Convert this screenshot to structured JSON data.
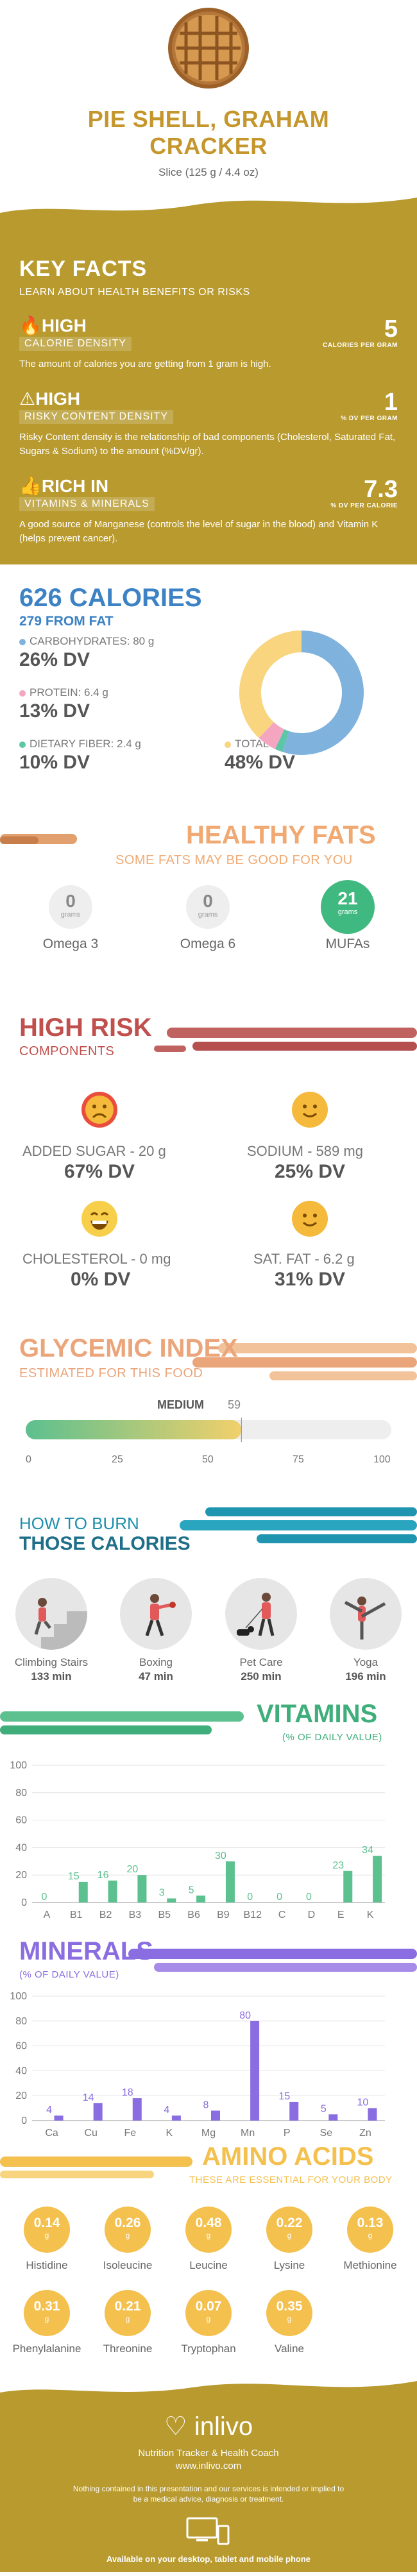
{
  "header": {
    "title_line1": "PIE SHELL, GRAHAM",
    "title_line2": "CRACKER",
    "serving": "Slice (125 g / 4.4 oz)"
  },
  "key_facts": {
    "title": "KEY FACTS",
    "subtitle": "LEARN ABOUT HEALTH BENEFITS OR RISKS",
    "facts": [
      {
        "level": "HIGH",
        "band": "CALORIE DENSITY",
        "value": "5",
        "unit": "CALORIES PER GRAM",
        "desc": "The amount of calories you are getting from 1 gram is high."
      },
      {
        "level": "HIGH",
        "band": "RISKY CONTENT DENSITY",
        "value": "1",
        "unit": "% DV PER GRAM",
        "desc": "Risky Content density is the relationship of bad components (Cholesterol, Saturated Fat, Sugars & Sodium) to the amount (%DV/gr)."
      },
      {
        "level": "RICH IN",
        "band": "VITAMINS & MINERALS",
        "value": "7.3",
        "unit": "% DV PER CALORIE",
        "desc": "A good source of Manganese (controls the level of sugar in the blood) and Vitamin K (helps prevent cancer)."
      }
    ]
  },
  "calories": {
    "title": "626 CALORIES",
    "subtitle": "279 FROM FAT",
    "carbs": {
      "label": "CARBOHYDRATES: 80 g",
      "dv": "26% DV"
    },
    "protein": {
      "label": "PROTEIN: 6.4 g",
      "dv": "13% DV"
    },
    "fiber": {
      "label": "DIETARY FIBER: 2.4 g",
      "dv": "10% DV"
    },
    "fat": {
      "label": "TOTAL FAT: 31 g",
      "dv": "48% DV"
    },
    "colors": {
      "carbs": "#7fb3de",
      "protein": "#f4a6c0",
      "fiber": "#5cc6a6",
      "fat": "#f8d57e"
    },
    "donut_fractions": {
      "carbs": 0.55,
      "protein": 0.05,
      "fiber": 0.02,
      "fat": 0.38
    }
  },
  "fats": {
    "title": "HEALTHY FATS",
    "subtitle": "SOME FATS MAY BE GOOD FOR YOU",
    "items": [
      {
        "value": "0",
        "unit": "grams",
        "name": "Omega 3"
      },
      {
        "value": "0",
        "unit": "grams",
        "name": "Omega 6"
      },
      {
        "value": "21",
        "unit": "grams",
        "name": "MUFAs"
      }
    ]
  },
  "risk": {
    "title": "HIGH RISK",
    "subtitle": "COMPONENTS",
    "items": [
      {
        "label": "ADDED SUGAR - 20 g",
        "dv": "67% DV",
        "face": "sad"
      },
      {
        "label": "SODIUM - 589 mg",
        "dv": "25% DV",
        "face": "smile"
      },
      {
        "label": "CHOLESTEROL - 0 mg",
        "dv": "0% DV",
        "face": "grin"
      },
      {
        "label": "SAT. FAT - 6.2 g",
        "dv": "31% DV",
        "face": "smile"
      }
    ]
  },
  "glycemic": {
    "title": "GLYCEMIC INDEX",
    "subtitle": "ESTIMATED FOR THIS FOOD",
    "level": "MEDIUM",
    "value": "59",
    "ticks": [
      "0",
      "25",
      "50",
      "75",
      "100"
    ],
    "fraction": 0.59
  },
  "burn": {
    "title1": "HOW TO BURN",
    "title2": "THOSE CALORIES",
    "activities": [
      {
        "name": "Climbing Stairs",
        "min": "133 min"
      },
      {
        "name": "Boxing",
        "min": "47 min"
      },
      {
        "name": "Pet Care",
        "min": "250 min"
      },
      {
        "name": "Yoga",
        "min": "196 min"
      }
    ]
  },
  "chart_data": [
    {
      "type": "bar",
      "title": "VITAMINS",
      "subtitle": "(% OF DAILY VALUE)",
      "categories": [
        "A",
        "B1",
        "B2",
        "B3",
        "B5",
        "B6",
        "B9",
        "B12",
        "C",
        "D",
        "E",
        "K"
      ],
      "values": [
        0,
        15,
        16,
        20,
        3,
        5,
        30,
        0,
        0,
        0,
        23,
        34
      ],
      "ylim": [
        0,
        100
      ],
      "yticks": [
        "0",
        "20",
        "40",
        "60",
        "80",
        "100"
      ],
      "color": "#5cc08f"
    },
    {
      "type": "bar",
      "title": "MINERALS",
      "subtitle": "(% OF DAILY VALUE)",
      "categories": [
        "Ca",
        "Cu",
        "Fe",
        "K",
        "Mg",
        "Mn",
        "P",
        "Se",
        "Zn"
      ],
      "values": [
        4,
        14,
        18,
        4,
        8,
        80,
        15,
        5,
        10
      ],
      "ylim": [
        0,
        100
      ],
      "yticks": [
        "0",
        "20",
        "40",
        "60",
        "80",
        "100"
      ],
      "color": "#8a6de0"
    }
  ],
  "amino": {
    "title": "AMINO ACIDS",
    "subtitle": "THESE ARE ESSENTIAL FOR YOUR BODY",
    "unit": "g",
    "items": [
      {
        "value": "0.14",
        "name": "Histidine"
      },
      {
        "value": "0.26",
        "name": "Isoleucine"
      },
      {
        "value": "0.48",
        "name": "Leucine"
      },
      {
        "value": "0.22",
        "name": "Lysine"
      },
      {
        "value": "0.13",
        "name": "Methionine"
      },
      {
        "value": "0.31",
        "name": "Phenylalanine"
      },
      {
        "value": "0.21",
        "name": "Threonine"
      },
      {
        "value": "0.07",
        "name": "Tryptophan"
      },
      {
        "value": "0.35",
        "name": "Valine"
      }
    ]
  },
  "footer": {
    "logo": "inlivo",
    "line1": "Nutrition Tracker & Health Coach",
    "line2": "www.inlivo.com",
    "disclaimer": "Nothing contained in this presentation and our services is intended or implied to be a medical advice, diagnosis or treatment.",
    "platforms": "Available on your desktop, tablet and mobile phone"
  }
}
